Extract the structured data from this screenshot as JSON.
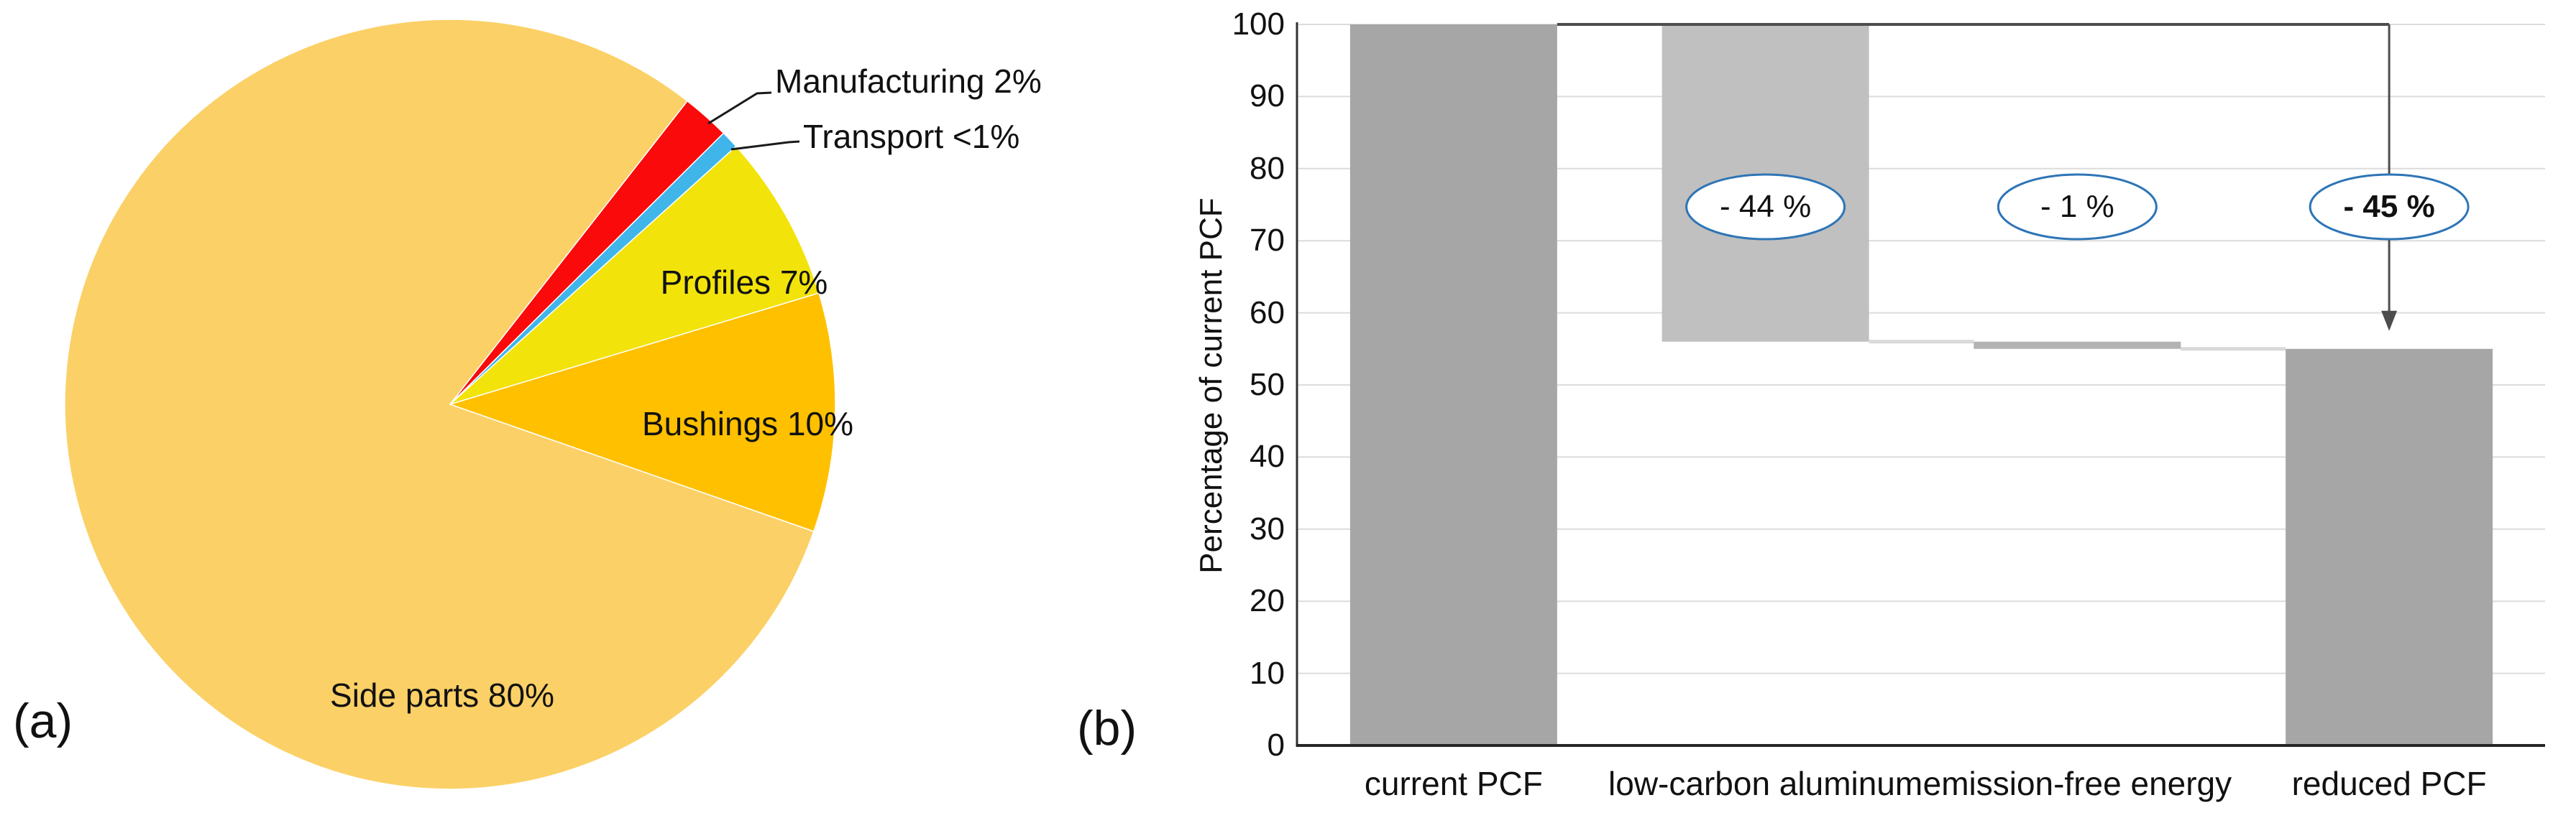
{
  "figure": {
    "panel_a_label": "(a)",
    "panel_b_label": "(b)"
  },
  "colors": {
    "pie_side_parts": "#FBD066",
    "pie_manufacturing": "#FA0A0A",
    "pie_transport": "#3FB5EA",
    "pie_profiles": "#F2E30B",
    "pie_bushings": "#FFC000",
    "bar_dark_gray": "#A6A6A6",
    "bar_light_gray": "#C0C0C0",
    "bar_mid_gray": "#B3B3B3",
    "gridline": "#DCDCDC",
    "connector_light": "#D9D9D9",
    "connector_dark": "#4D4D4D",
    "axis": "#333333",
    "ellipse_stroke": "#2E75B6",
    "leader_line": "#1A1A1A"
  },
  "chart_data": [
    {
      "type": "pie",
      "start_angle_deg": 38,
      "slices": [
        {
          "name": "manufacturing",
          "label": "Manufacturing 2%",
          "value": 2,
          "color": "#FA0A0A"
        },
        {
          "name": "transport",
          "label": "Transport <1%",
          "value": 0.75,
          "color": "#3FB5EA"
        },
        {
          "name": "profiles",
          "label": "Profiles 7%",
          "value": 7,
          "color": "#F2E30B"
        },
        {
          "name": "bushings",
          "label": "Bushings 10%",
          "value": 10,
          "color": "#FFC000"
        },
        {
          "name": "side-parts",
          "label": "Side parts 80%",
          "value": 80,
          "color": "#FBD066"
        }
      ]
    },
    {
      "type": "bar",
      "subtype": "waterfall",
      "ylabel": "Percentage of current PCF",
      "ylim": [
        0,
        100
      ],
      "grid": true,
      "yticks": [
        "100",
        "90",
        "80",
        "70",
        "60",
        "50",
        "40",
        "30",
        "20",
        "10",
        "0"
      ],
      "categories": [
        "current PCF",
        "low-carbon aluminum",
        "emission-free energy",
        "reduced PCF"
      ],
      "bars": [
        {
          "category": "current PCF",
          "base": 0,
          "top": 100,
          "color": "#A6A6A6",
          "annotation": "",
          "annotation_bold": false
        },
        {
          "category": "low-carbon aluminum",
          "base": 56,
          "top": 100,
          "color": "#C0C0C0",
          "annotation": "- 44 %",
          "annotation_bold": false
        },
        {
          "category": "emission-free energy",
          "base": 55,
          "top": 56,
          "color": "#B3B3B3",
          "annotation": "- 1 %",
          "annotation_bold": false
        },
        {
          "category": "reduced PCF",
          "base": 0,
          "top": 55,
          "color": "#A6A6A6",
          "annotation": "- 45 %",
          "annotation_bold": true
        }
      ],
      "step_connectors": [
        {
          "value": 56,
          "from_bar": 1,
          "to_bar": 2
        },
        {
          "value": 55,
          "from_bar": 2,
          "to_bar": 3
        }
      ],
      "total_reduction_arrow": {
        "from_value": 100,
        "arrow_tip_value": 57.5,
        "at_category": 3
      }
    }
  ]
}
